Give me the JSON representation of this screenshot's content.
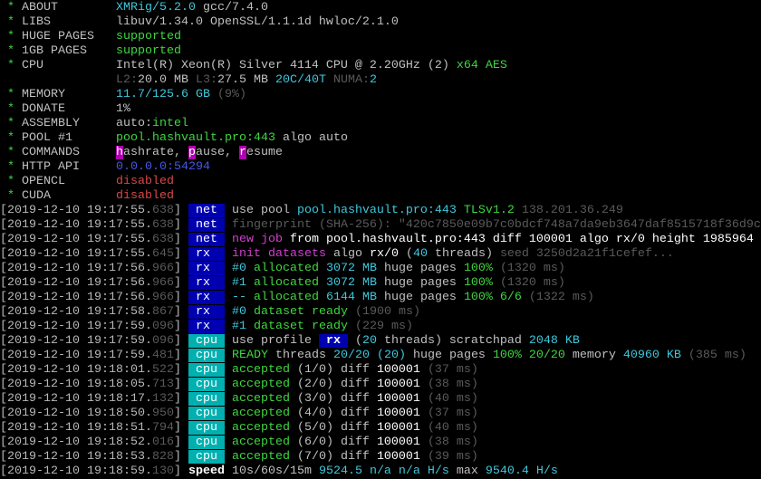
{
  "colors": {
    "background": "#000000",
    "net_badge": "#0000b0",
    "rx_badge": "#0000b0",
    "cpu_badge": "#00b0b0",
    "green": "#3fd63f",
    "cyan": "#3ec8dc",
    "magenta": "#d23fd2",
    "red": "#d84848",
    "blue": "#4658e6",
    "dim": "#5a5a5a"
  },
  "star": "*",
  "header": [
    {
      "label": "ABOUT",
      "value": [
        [
          "XMRig/5.2.0",
          "c"
        ],
        [
          " gcc/7.4.0",
          "w"
        ]
      ]
    },
    {
      "label": "LIBS",
      "value": [
        [
          "libuv/1.34.0 OpenSSL/1.1.1d hwloc/2.1.0",
          "w"
        ]
      ]
    },
    {
      "label": "HUGE PAGES",
      "value": [
        [
          "supported",
          "g"
        ]
      ]
    },
    {
      "label": "1GB PAGES",
      "value": [
        [
          "supported",
          "g"
        ]
      ]
    },
    {
      "label": "CPU",
      "value": [
        [
          "Intel(R) Xeon(R) Silver 4114 CPU @ 2.20GHz (2) ",
          "w"
        ],
        [
          "x64 AES",
          "g"
        ]
      ]
    },
    {
      "label": "",
      "value": [
        [
          "L2:",
          "d"
        ],
        [
          "20.0 MB ",
          "w"
        ],
        [
          "L3:",
          "d"
        ],
        [
          "27.5 MB ",
          "w"
        ],
        [
          "20C/40T ",
          "c"
        ],
        [
          "NUMA:",
          "d"
        ],
        [
          "2",
          "c"
        ]
      ]
    },
    {
      "label": "MEMORY",
      "value": [
        [
          "11.7/125.6 GB ",
          "c"
        ],
        [
          "(9%)",
          "d"
        ]
      ]
    },
    {
      "label": "DONATE",
      "value": [
        [
          "1%",
          "w"
        ]
      ]
    },
    {
      "label": "ASSEMBLY",
      "value": [
        [
          "auto:",
          "w"
        ],
        [
          "intel",
          "g"
        ]
      ]
    },
    {
      "label": "POOL #1",
      "value": [
        [
          "pool.hashvault.pro:443 ",
          "g"
        ],
        [
          "algo auto",
          "w"
        ]
      ]
    },
    {
      "label": "COMMANDS",
      "value": [
        [
          "h",
          "hk"
        ],
        [
          "ashrate, ",
          "w"
        ],
        [
          "p",
          "hk"
        ],
        [
          "ause, ",
          "w"
        ],
        [
          "r",
          "hk"
        ],
        [
          "esume",
          "w"
        ]
      ]
    },
    {
      "label": "HTTP API",
      "value": [
        [
          "0.0.0.0:54294",
          "b"
        ]
      ]
    },
    {
      "label": "OPENCL",
      "value": [
        [
          "disabled",
          "r"
        ]
      ]
    },
    {
      "label": "CUDA",
      "value": [
        [
          "disabled",
          "r"
        ]
      ]
    }
  ],
  "log": [
    {
      "time": "2019-12-10 19:17:55",
      "ms": "638",
      "tag": "net",
      "msg": [
        [
          "use pool ",
          "w"
        ],
        [
          "pool.hashvault.pro:443 ",
          "c"
        ],
        [
          "TLSv1.2 ",
          "g"
        ],
        [
          "138.201.36.249",
          "d"
        ]
      ]
    },
    {
      "time": "2019-12-10 19:17:55",
      "ms": "638",
      "tag": "net",
      "msg": [
        [
          "fingerprint (SHA-256): \"420c7850e09b7c0bdcf748a7da9eb3647daf8515718f36d9c",
          "d"
        ]
      ]
    },
    {
      "time": "2019-12-10 19:17:55",
      "ms": "638",
      "tag": "net",
      "msg": [
        [
          "new job",
          "m"
        ],
        [
          " from pool.hashvault.pro:443 diff 100001 algo rx/0 height 1985964",
          "W"
        ]
      ]
    },
    {
      "time": "2019-12-10 19:17:55",
      "ms": "645",
      "tag": "rx",
      "msg": [
        [
          "init datasets",
          "m"
        ],
        [
          " algo ",
          "w"
        ],
        [
          "rx/0",
          "W"
        ],
        [
          " (",
          "w"
        ],
        [
          "40",
          "c"
        ],
        [
          " threads) ",
          "w"
        ],
        [
          "seed 3250d2a21f1cefef...",
          "d"
        ]
      ]
    },
    {
      "time": "2019-12-10 19:17:56",
      "ms": "966",
      "tag": "rx",
      "msg": [
        [
          "#0 ",
          "c"
        ],
        [
          "allocated ",
          "g"
        ],
        [
          "3072 MB ",
          "c"
        ],
        [
          "huge pages ",
          "w"
        ],
        [
          "100% ",
          "g"
        ],
        [
          "(1320 ms)",
          "d"
        ]
      ]
    },
    {
      "time": "2019-12-10 19:17:56",
      "ms": "966",
      "tag": "rx",
      "msg": [
        [
          "#1 ",
          "c"
        ],
        [
          "allocated ",
          "g"
        ],
        [
          "3072 MB ",
          "c"
        ],
        [
          "huge pages ",
          "w"
        ],
        [
          "100% ",
          "g"
        ],
        [
          "(1320 ms)",
          "d"
        ]
      ]
    },
    {
      "time": "2019-12-10 19:17:56",
      "ms": "966",
      "tag": "rx",
      "msg": [
        [
          "-- ",
          "c"
        ],
        [
          "allocated ",
          "g"
        ],
        [
          "6144 MB ",
          "c"
        ],
        [
          "huge pages ",
          "w"
        ],
        [
          "100% 6/6 ",
          "g"
        ],
        [
          "(1322 ms)",
          "d"
        ]
      ]
    },
    {
      "time": "2019-12-10 19:17:58",
      "ms": "867",
      "tag": "rx",
      "msg": [
        [
          "#0 ",
          "c"
        ],
        [
          "dataset ready ",
          "g"
        ],
        [
          "(1900 ms)",
          "d"
        ]
      ]
    },
    {
      "time": "2019-12-10 19:17:59",
      "ms": "096",
      "tag": "rx",
      "msg": [
        [
          "#1 ",
          "c"
        ],
        [
          "dataset ready ",
          "g"
        ],
        [
          "(229 ms)",
          "d"
        ]
      ]
    },
    {
      "time": "2019-12-10 19:17:59",
      "ms": "096",
      "tag": "cpu",
      "msg": [
        [
          "use profile ",
          "w"
        ],
        [
          " rx ",
          "inbadge"
        ],
        [
          " (",
          "w"
        ],
        [
          "20",
          "c"
        ],
        [
          " threads) scratchpad ",
          "w"
        ],
        [
          "2048 KB",
          "c"
        ]
      ]
    },
    {
      "time": "2019-12-10 19:17:59",
      "ms": "481",
      "tag": "cpu",
      "msg": [
        [
          "READY",
          "g"
        ],
        [
          " threads ",
          "w"
        ],
        [
          "20/20",
          "c"
        ],
        [
          " (20) ",
          "c"
        ],
        [
          "huge pages ",
          "w"
        ],
        [
          "100% 20/20 ",
          "g"
        ],
        [
          "memory ",
          "w"
        ],
        [
          "40960 KB ",
          "c"
        ],
        [
          "(385 ms)",
          "d"
        ]
      ]
    },
    {
      "time": "2019-12-10 19:18:01",
      "ms": "522",
      "tag": "cpu",
      "msg": [
        [
          "accepted ",
          "g"
        ],
        [
          "(1/0) diff ",
          "w"
        ],
        [
          "100001 ",
          "W"
        ],
        [
          "(37 ms)",
          "d"
        ]
      ]
    },
    {
      "time": "2019-12-10 19:18:05",
      "ms": "713",
      "tag": "cpu",
      "msg": [
        [
          "accepted ",
          "g"
        ],
        [
          "(2/0) diff ",
          "w"
        ],
        [
          "100001 ",
          "W"
        ],
        [
          "(38 ms)",
          "d"
        ]
      ]
    },
    {
      "time": "2019-12-10 19:18:17",
      "ms": "132",
      "tag": "cpu",
      "msg": [
        [
          "accepted ",
          "g"
        ],
        [
          "(3/0) diff ",
          "w"
        ],
        [
          "100001 ",
          "W"
        ],
        [
          "(40 ms)",
          "d"
        ]
      ]
    },
    {
      "time": "2019-12-10 19:18:50",
      "ms": "950",
      "tag": "cpu",
      "msg": [
        [
          "accepted ",
          "g"
        ],
        [
          "(4/0) diff ",
          "w"
        ],
        [
          "100001 ",
          "W"
        ],
        [
          "(37 ms)",
          "d"
        ]
      ]
    },
    {
      "time": "2019-12-10 19:18:51",
      "ms": "794",
      "tag": "cpu",
      "msg": [
        [
          "accepted ",
          "g"
        ],
        [
          "(5/0) diff ",
          "w"
        ],
        [
          "100001 ",
          "W"
        ],
        [
          "(40 ms)",
          "d"
        ]
      ]
    },
    {
      "time": "2019-12-10 19:18:52",
      "ms": "016",
      "tag": "cpu",
      "msg": [
        [
          "accepted ",
          "g"
        ],
        [
          "(6/0) diff ",
          "w"
        ],
        [
          "100001 ",
          "W"
        ],
        [
          "(38 ms)",
          "d"
        ]
      ]
    },
    {
      "time": "2019-12-10 19:18:53",
      "ms": "828",
      "tag": "cpu",
      "msg": [
        [
          "accepted ",
          "g"
        ],
        [
          "(7/0) diff ",
          "w"
        ],
        [
          "100001 ",
          "W"
        ],
        [
          "(39 ms)",
          "d"
        ]
      ]
    },
    {
      "time": "2019-12-10 19:18:59",
      "ms": "130",
      "tag": "",
      "msg": [
        [
          "speed",
          "W bold"
        ],
        [
          " 10s/60s/15m ",
          "w"
        ],
        [
          "9524.5 n/a n/a H/s",
          "c"
        ],
        [
          " max ",
          "w"
        ],
        [
          "9540.4 H/s",
          "c"
        ]
      ]
    }
  ]
}
